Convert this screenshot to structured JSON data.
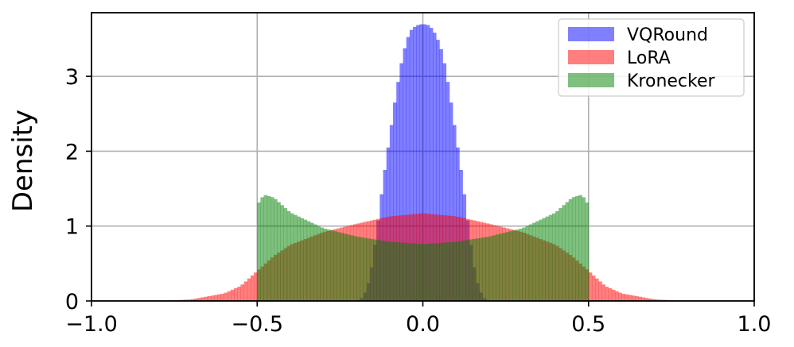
{
  "chart_data": {
    "type": "histogram",
    "xlabel": "",
    "ylabel": "Density",
    "xlim": [
      -1.0,
      1.0
    ],
    "ylim": [
      0,
      3.85
    ],
    "xticks": [
      -1.0,
      -0.5,
      0.0,
      0.5,
      1.0
    ],
    "xtick_labels": [
      "−1.0",
      "−0.5",
      "0.0",
      "0.5",
      "1.0"
    ],
    "yticks": [
      0,
      1,
      2,
      3
    ],
    "ytick_labels": [
      "0",
      "1",
      "2",
      "3"
    ],
    "grid": true,
    "legend_position": "top-right",
    "bin_width": 0.01,
    "series": [
      {
        "name": "VQRound",
        "color": "#0000ff",
        "opacity": 0.5,
        "x": [
          -0.2,
          -0.18,
          -0.16,
          -0.14,
          -0.12,
          -0.1,
          -0.08,
          -0.06,
          -0.04,
          -0.02,
          0.0,
          0.02,
          0.04,
          0.06,
          0.08,
          0.1,
          0.12,
          0.14,
          0.16,
          0.18,
          0.2
        ],
        "density": [
          0.0,
          0.05,
          0.3,
          0.9,
          1.6,
          2.2,
          2.8,
          3.3,
          3.6,
          3.68,
          3.7,
          3.68,
          3.55,
          3.3,
          2.8,
          2.2,
          1.6,
          0.9,
          0.3,
          0.05,
          0.0
        ]
      },
      {
        "name": "LoRA",
        "color": "#ff0000",
        "opacity": 0.5,
        "x": [
          -0.8,
          -0.7,
          -0.6,
          -0.55,
          -0.5,
          -0.45,
          -0.4,
          -0.3,
          -0.2,
          -0.1,
          0.0,
          0.1,
          0.2,
          0.3,
          0.4,
          0.45,
          0.5,
          0.55,
          0.6,
          0.7,
          0.8
        ],
        "density": [
          0.0,
          0.02,
          0.1,
          0.2,
          0.4,
          0.6,
          0.75,
          0.92,
          1.03,
          1.13,
          1.17,
          1.13,
          1.03,
          0.92,
          0.75,
          0.6,
          0.4,
          0.2,
          0.1,
          0.02,
          0.0
        ]
      },
      {
        "name": "Kronecker",
        "color": "#008000",
        "opacity": 0.5,
        "x": [
          -0.5,
          -0.48,
          -0.45,
          -0.4,
          -0.3,
          -0.2,
          -0.1,
          0.0,
          0.1,
          0.2,
          0.3,
          0.4,
          0.45,
          0.48,
          0.5
        ],
        "density": [
          1.28,
          1.42,
          1.38,
          1.18,
          0.97,
          0.86,
          0.79,
          0.76,
          0.79,
          0.86,
          0.97,
          1.18,
          1.38,
          1.42,
          1.28
        ]
      }
    ]
  }
}
